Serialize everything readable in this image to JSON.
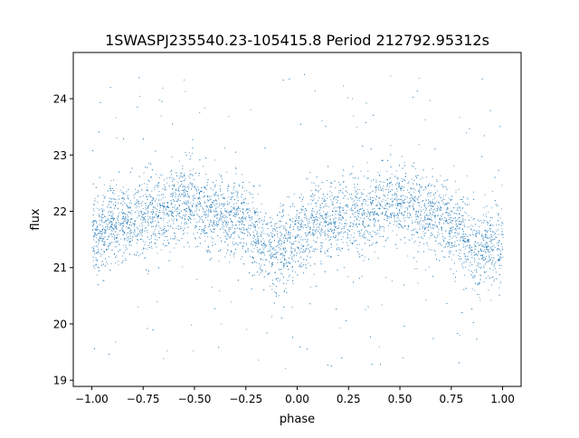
{
  "chart_data": {
    "type": "scatter",
    "title": "1SWASPJ235540.23-105415.8 Period 212792.95312s",
    "xlabel": "phase",
    "ylabel": "flux",
    "xlim": [
      -1.09,
      1.09
    ],
    "ylim": [
      18.89,
      24.82
    ],
    "xticks": [
      -1.0,
      -0.75,
      -0.5,
      -0.25,
      0.0,
      0.25,
      0.5,
      0.75,
      1.0
    ],
    "xtick_labels": [
      "−1.00",
      "−0.75",
      "−0.50",
      "−0.25",
      "0.00",
      "0.25",
      "0.50",
      "0.75",
      "1.00"
    ],
    "yticks": [
      19,
      20,
      21,
      22,
      23,
      24
    ],
    "ytick_labels": [
      "19",
      "20",
      "21",
      "22",
      "23",
      "24"
    ],
    "grid": false,
    "marker_color": "#1f77b4",
    "phase_range": [
      -1.0,
      1.0
    ],
    "binned_mean_flux": {
      "phase": [
        -1.0,
        -0.9,
        -0.75,
        -0.6,
        -0.55,
        -0.45,
        -0.3,
        -0.2,
        -0.15,
        -0.05,
        0.0,
        0.1,
        0.25,
        0.4,
        0.45,
        0.55,
        0.7,
        0.8,
        0.85,
        0.95,
        1.0
      ],
      "flux": [
        21.5,
        21.8,
        21.9,
        22.1,
        22.2,
        22.0,
        21.9,
        21.6,
        21.3,
        21.4,
        21.5,
        21.8,
        21.95,
        22.1,
        22.2,
        22.0,
        21.9,
        21.6,
        21.3,
        21.4,
        21.5
      ]
    },
    "flux_scatter_sd": 0.35,
    "outlier_flux_range": [
      19.2,
      24.5
    ]
  }
}
